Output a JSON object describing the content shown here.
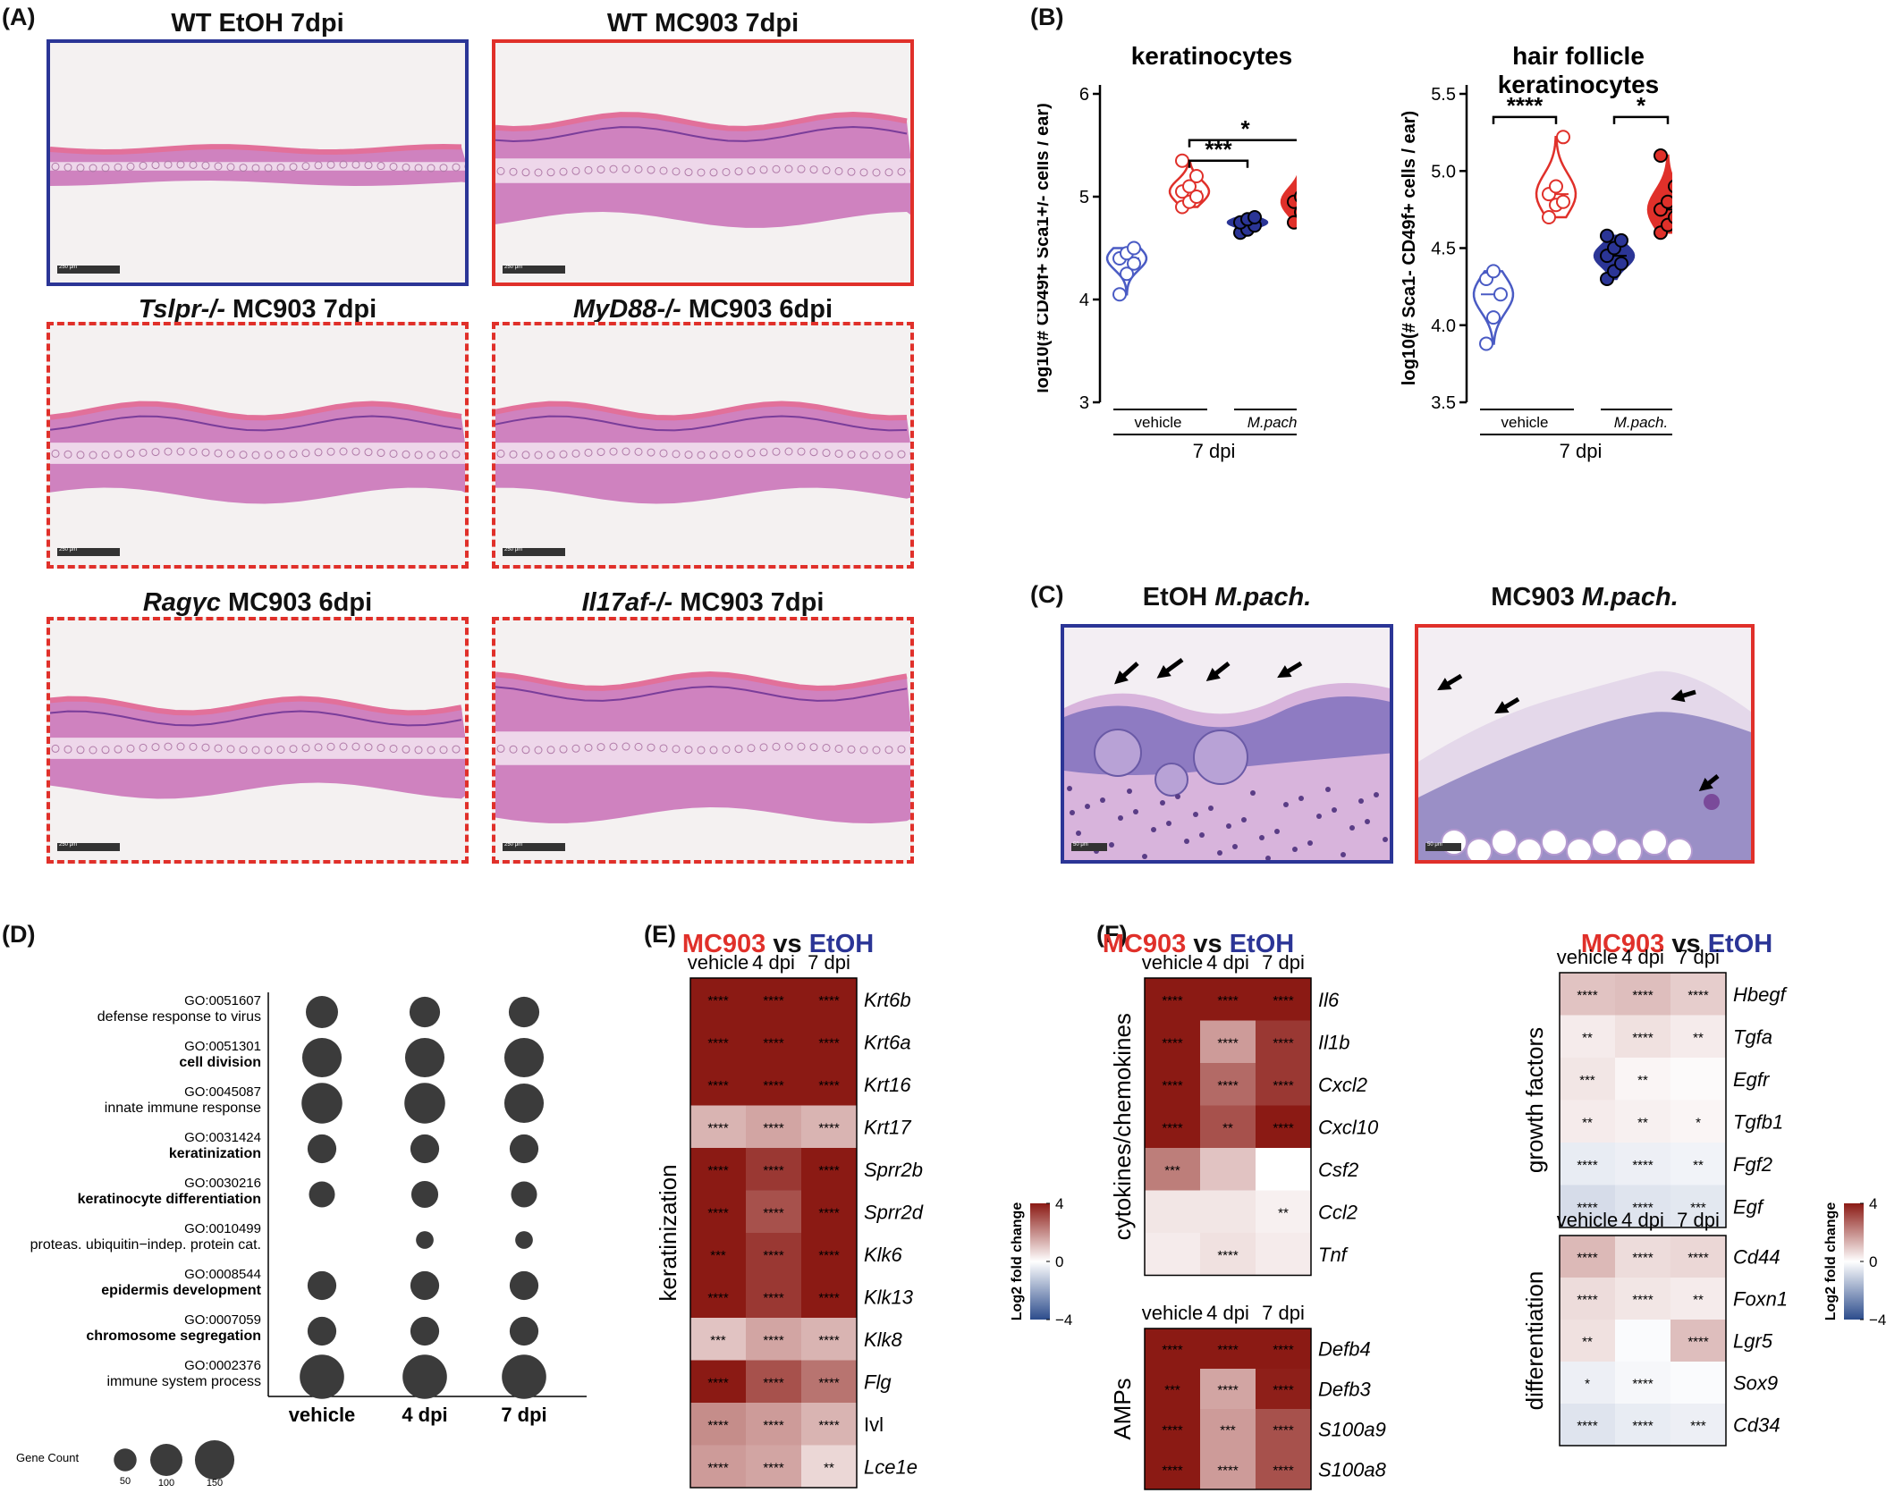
{
  "panel_labels": {
    "A": "(A)",
    "B": "(B)",
    "C": "(C)",
    "D": "(D)",
    "E": "(E)",
    "F": "(F)"
  },
  "panelA": {
    "images": [
      {
        "title_pre": "WT EtOH 7dpi",
        "title_it": "",
        "border": "#2b3596"
      },
      {
        "title_pre": "WT MC903 7dpi",
        "title_it": "",
        "border": "#e0302a"
      },
      {
        "title_it": "Tslpr-/-",
        "title_post": " MC903 7dpi",
        "border": "#e0302a"
      },
      {
        "title_it": "MyD88-/-",
        "title_post": " MC903 6dpi",
        "border": "#e0302a"
      },
      {
        "title_it": "Ragγc",
        "title_post": " MC903 6dpi",
        "border": "#e0302a"
      },
      {
        "title_it": "Il17af-/-",
        "title_post": " MC903 7dpi",
        "border": "#e0302a"
      }
    ],
    "scale_label": "250 μm"
  },
  "panelC": {
    "left_title": "EtOH",
    "left_title_it": "M.pach.",
    "right_title": "MC903",
    "right_title_it": "M.pach.",
    "scale_label": "50 μm"
  },
  "chart_data": [
    {
      "type": "violin",
      "panel": "B-left",
      "title": "keratinocytes",
      "ylabel": "log10(# CD49f+ Sca1+/- cells / ear)",
      "ylim": [
        3,
        6
      ],
      "yticks": [
        3,
        4,
        5,
        6
      ],
      "group_labels": [
        "vehicle",
        "M.pach."
      ],
      "xlabel": "7 dpi",
      "series": [
        {
          "name": "vehicle EtOH",
          "color": "#4a5bc4",
          "filled": false,
          "values": [
            4.05,
            4.25,
            4.35,
            4.4,
            4.45,
            4.5
          ]
        },
        {
          "name": "vehicle MC903",
          "color": "#e0302a",
          "filled": false,
          "values": [
            4.9,
            4.95,
            5.0,
            5.05,
            5.1,
            5.2,
            5.35
          ]
        },
        {
          "name": "M.pach. EtOH",
          "color": "#2b3596",
          "filled": true,
          "values": [
            4.65,
            4.68,
            4.72,
            4.75,
            4.78,
            4.8
          ]
        },
        {
          "name": "M.pach. MC903",
          "color": "#e0302a",
          "filled": true,
          "values": [
            4.75,
            4.85,
            4.9,
            4.95,
            5.0,
            5.3
          ]
        }
      ],
      "significance": [
        {
          "from": 1,
          "to": 2,
          "level": 5.35,
          "label": "***"
        },
        {
          "from": 1,
          "to": 3,
          "level": 5.55,
          "label": "*"
        }
      ]
    },
    {
      "type": "violin",
      "panel": "B-right",
      "title": "hair follicle keratinocytes",
      "title_lines": [
        "hair follicle",
        "keratinocytes"
      ],
      "ylabel": "log10(# Sca1- CD49f+ cells / ear)",
      "ylim": [
        3.5,
        5.5
      ],
      "yticks": [
        3.5,
        4.0,
        4.5,
        5.0,
        5.5
      ],
      "group_labels": [
        "vehicle",
        "M.pach."
      ],
      "xlabel": "7 dpi",
      "series": [
        {
          "name": "vehicle EtOH",
          "color": "#4a5bc4",
          "filled": false,
          "values": [
            3.88,
            4.05,
            4.2,
            4.3,
            4.35
          ]
        },
        {
          "name": "vehicle MC903",
          "color": "#e0302a",
          "filled": false,
          "values": [
            4.7,
            4.78,
            4.8,
            4.85,
            4.9,
            5.22
          ]
        },
        {
          "name": "M.pach. EtOH",
          "color": "#2b3596",
          "filled": true,
          "values": [
            4.3,
            4.35,
            4.4,
            4.45,
            4.5,
            4.55,
            4.58
          ]
        },
        {
          "name": "M.pach. MC903",
          "color": "#e0302a",
          "filled": true,
          "values": [
            4.6,
            4.65,
            4.7,
            4.75,
            4.8,
            4.9,
            5.1
          ]
        }
      ],
      "significance": [
        {
          "from": 0,
          "to": 1,
          "level": 5.35,
          "label": "****"
        },
        {
          "from": 2,
          "to": 3,
          "level": 5.35,
          "label": "*"
        }
      ]
    },
    {
      "type": "dot",
      "panel": "D",
      "x": [
        "vehicle",
        "4 dpi",
        "7 dpi"
      ],
      "terms": [
        {
          "id": "GO:0051607",
          "name": "defense response to virus",
          "bold": false,
          "counts": [
            100,
            90,
            90
          ]
        },
        {
          "id": "GO:0051301",
          "name": "cell division",
          "bold": true,
          "counts": [
            150,
            150,
            150
          ]
        },
        {
          "id": "GO:0045087",
          "name": "innate immune response",
          "bold": false,
          "counts": [
            160,
            160,
            150
          ]
        },
        {
          "id": "GO:0031424",
          "name": "keratinization",
          "bold": true,
          "counts": [
            80,
            80,
            80
          ]
        },
        {
          "id": "GO:0030216",
          "name": "keratinocyte differentiation",
          "bold": true,
          "counts": [
            65,
            70,
            65
          ]
        },
        {
          "id": "GO:0010499",
          "name": "proteas. ubiquitin−indep. protein cat.",
          "bold": false,
          "counts": null,
          "counts_shown": [
            0,
            30,
            30
          ]
        },
        {
          "id": "GO:0008544",
          "name": "epidermis development",
          "bold": true,
          "counts": [
            80,
            80,
            80
          ]
        },
        {
          "id": "GO:0007059",
          "name": "chromosome segregation",
          "bold": true,
          "counts": [
            80,
            80,
            80
          ]
        },
        {
          "id": "GO:0002376",
          "name": "immune system process",
          "bold": false,
          "counts": [
            190,
            190,
            190
          ]
        }
      ],
      "size_legend": {
        "title": "Gene Count",
        "values": [
          50,
          100,
          150
        ]
      }
    },
    {
      "type": "heatmap",
      "panel": "E",
      "title_a": "MC903",
      "title_vs": " vs ",
      "title_b": "EtOH",
      "columns": [
        "vehicle",
        "4 dpi",
        "7 dpi"
      ],
      "row_group": "keratinization",
      "rows": [
        {
          "gene": "Krt6b",
          "italic": true,
          "values": [
            6,
            6,
            6
          ],
          "stars": [
            "****",
            "****",
            "****"
          ]
        },
        {
          "gene": "Krt6a",
          "italic": true,
          "values": [
            6,
            6,
            6
          ],
          "stars": [
            "****",
            "****",
            "****"
          ]
        },
        {
          "gene": "Krt16",
          "italic": true,
          "values": [
            6,
            6,
            6
          ],
          "stars": [
            "****",
            "****",
            "****"
          ]
        },
        {
          "gene": "Krt17",
          "italic": true,
          "values": [
            1.5,
            1.8,
            1.5
          ],
          "stars": [
            "****",
            "****",
            "****"
          ]
        },
        {
          "gene": "Sprr2b",
          "italic": true,
          "values": [
            6,
            4,
            6
          ],
          "stars": [
            "****",
            "****",
            "****"
          ]
        },
        {
          "gene": "Sprr2d",
          "italic": true,
          "values": [
            6,
            3.5,
            5
          ],
          "stars": [
            "****",
            "****",
            "****"
          ]
        },
        {
          "gene": "Klk6",
          "italic": true,
          "values": [
            6,
            4,
            5
          ],
          "stars": [
            "***",
            "****",
            "****"
          ]
        },
        {
          "gene": "Klk13",
          "italic": true,
          "values": [
            6,
            4,
            5
          ],
          "stars": [
            "****",
            "****",
            "****"
          ]
        },
        {
          "gene": "Klk8",
          "italic": true,
          "values": [
            1.2,
            1.8,
            1.5
          ],
          "stars": [
            "***",
            "****",
            "****"
          ]
        },
        {
          "gene": "Flg",
          "italic": true,
          "values": [
            5,
            3.5,
            2.8
          ],
          "stars": [
            "****",
            "****",
            "****"
          ]
        },
        {
          "gene": "Ivl",
          "italic": false,
          "values": [
            2.3,
            2,
            1.5
          ],
          "stars": [
            "****",
            "****",
            "****"
          ]
        },
        {
          "gene": "Lce1e",
          "italic": true,
          "values": [
            2,
            1.8,
            0.8
          ],
          "stars": [
            "****",
            "****",
            "**"
          ]
        }
      ],
      "legend": {
        "title": "Log2 fold change",
        "ticks": [
          4,
          0,
          -4
        ]
      }
    },
    {
      "type": "heatmap",
      "panel": "F-cytokines",
      "title_a": "MC903",
      "title_vs": " vs ",
      "title_b": "EtOH",
      "columns": [
        "vehicle",
        "4 dpi",
        "7 dpi"
      ],
      "row_group": "cytokines/chemokines",
      "rows": [
        {
          "gene": "Il6",
          "italic": true,
          "values": [
            6,
            6,
            5
          ],
          "stars": [
            "****",
            "****",
            "****"
          ]
        },
        {
          "gene": "Il1b",
          "italic": true,
          "values": [
            6,
            2,
            4
          ],
          "stars": [
            "****",
            "****",
            "****"
          ]
        },
        {
          "gene": "Cxcl2",
          "italic": true,
          "values": [
            6,
            3,
            4
          ],
          "stars": [
            "****",
            "****",
            "****"
          ]
        },
        {
          "gene": "Cxcl10",
          "italic": true,
          "values": [
            6,
            3.5,
            5
          ],
          "stars": [
            "****",
            "**",
            "****"
          ]
        },
        {
          "gene": "Csf2",
          "italic": true,
          "values": [
            2.6,
            1.2,
            0
          ],
          "stars": [
            "***",
            "",
            ""
          ]
        },
        {
          "gene": "Ccl2",
          "italic": true,
          "values": [
            0.5,
            0.5,
            0.3
          ],
          "stars": [
            "",
            "",
            "**"
          ]
        },
        {
          "gene": "Tnf",
          "italic": true,
          "values": [
            0.4,
            0.6,
            0.4
          ],
          "stars": [
            "",
            "****",
            ""
          ]
        }
      ]
    },
    {
      "type": "heatmap",
      "panel": "F-AMPs",
      "columns": [
        "vehicle",
        "4 dpi",
        "7 dpi"
      ],
      "row_group": "AMPs",
      "rows": [
        {
          "gene": "Defb4",
          "italic": true,
          "values": [
            6,
            6,
            6
          ],
          "stars": [
            "****",
            "****",
            "****"
          ]
        },
        {
          "gene": "Defb3",
          "italic": true,
          "values": [
            6,
            1.8,
            4.5
          ],
          "stars": [
            "***",
            "****",
            "****"
          ]
        },
        {
          "gene": "S100a9",
          "italic": true,
          "values": [
            6,
            2,
            3.5
          ],
          "stars": [
            "****",
            "***",
            "****"
          ]
        },
        {
          "gene": "S100a8",
          "italic": true,
          "values": [
            6,
            2,
            3.5
          ],
          "stars": [
            "****",
            "****",
            "****"
          ]
        }
      ]
    },
    {
      "type": "heatmap",
      "panel": "F-growth",
      "title_a": "MC903",
      "title_vs": " vs ",
      "title_b": "EtOH",
      "columns": [
        "vehicle",
        "4 dpi",
        "7 dpi"
      ],
      "row_group": "growth factors",
      "rows": [
        {
          "gene": "Hbegf",
          "italic": true,
          "values": [
            1.2,
            1.3,
            1.0
          ],
          "stars": [
            "****",
            "****",
            "****"
          ]
        },
        {
          "gene": "Tgfa",
          "italic": true,
          "values": [
            0.4,
            0.6,
            0.4
          ],
          "stars": [
            "**",
            "****",
            "**"
          ]
        },
        {
          "gene": "Egfr",
          "italic": true,
          "values": [
            0.5,
            0.2,
            0.1
          ],
          "stars": [
            "***",
            "**",
            ""
          ]
        },
        {
          "gene": "Tgfb1",
          "italic": true,
          "values": [
            0.4,
            0.3,
            0.2
          ],
          "stars": [
            "**",
            "**",
            "*"
          ]
        },
        {
          "gene": "Fgf2",
          "italic": true,
          "values": [
            -0.5,
            -0.4,
            -0.3
          ],
          "stars": [
            "****",
            "****",
            "**"
          ]
        },
        {
          "gene": "Egf",
          "italic": true,
          "values": [
            -0.9,
            -0.7,
            -0.6
          ],
          "stars": [
            "****",
            "****",
            "***"
          ]
        }
      ],
      "legend": {
        "title": "Log2 fold change",
        "ticks": [
          4,
          0,
          -4
        ]
      }
    },
    {
      "type": "heatmap",
      "panel": "F-differentiation",
      "columns": [
        "vehicle",
        "4 dpi",
        "7 dpi"
      ],
      "row_group": "differentiation",
      "rows": [
        {
          "gene": "Cd44",
          "italic": true,
          "values": [
            1.4,
            0.7,
            0.8
          ],
          "stars": [
            "****",
            "****",
            "****"
          ]
        },
        {
          "gene": "Foxn1",
          "italic": true,
          "values": [
            0.7,
            0.5,
            0.4
          ],
          "stars": [
            "****",
            "****",
            "**"
          ]
        },
        {
          "gene": "Lgr5",
          "italic": true,
          "values": [
            0.6,
            -0.1,
            1.3
          ],
          "stars": [
            "**",
            "",
            "****"
          ]
        },
        {
          "gene": "Sox9",
          "italic": true,
          "values": [
            -0.4,
            -0.2,
            -0.1
          ],
          "stars": [
            "*",
            "****",
            ""
          ]
        },
        {
          "gene": "Cd34",
          "italic": true,
          "values": [
            -0.7,
            -0.5,
            -0.4
          ],
          "stars": [
            "****",
            "****",
            "***"
          ]
        }
      ]
    }
  ],
  "colors": {
    "red": "#e0302a",
    "blue": "#2b3596",
    "heat_high": "#8b1a14",
    "heat_low": "#2c4c8c"
  }
}
